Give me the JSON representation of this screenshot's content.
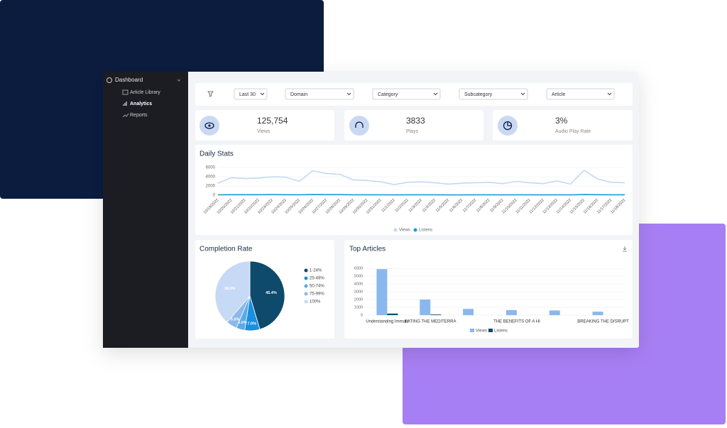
{
  "sidebar": {
    "title": "Dashboard",
    "items": [
      "Article Library",
      "Analytics",
      "Reports"
    ]
  },
  "filters": [
    "Last 30",
    "Domain",
    "Category",
    "Subcategory",
    "Article"
  ],
  "stats": [
    {
      "value": "125,754",
      "label": "Views"
    },
    {
      "value": "3833",
      "label": "Plays"
    },
    {
      "value": "3%",
      "label": "Audio Play Rate"
    }
  ],
  "chart_data": [
    {
      "type": "line",
      "title": "Daily Stats",
      "x": [
        "10/19/2022",
        "10/20/2022",
        "10/21/2022",
        "10/22/2022",
        "10/23/2022",
        "10/24/2022",
        "10/25/2022",
        "10/26/2022",
        "10/27/2022",
        "10/28/2022",
        "10/29/2022",
        "10/30/2022",
        "10/31/2022",
        "11/1/2022",
        "11/2/2022",
        "11/3/2022",
        "11/4/2022",
        "11/5/2022",
        "11/6/2022",
        "11/7/2022",
        "11/8/2022",
        "11/9/2022",
        "11/10/2022",
        "11/11/2022",
        "11/12/2022",
        "11/13/2022",
        "11/14/2022",
        "11/15/2022",
        "11/16/2022",
        "11/17/2022",
        "11/18/2022"
      ],
      "series": [
        {
          "name": "Views",
          "color": "#c3d9f2",
          "values": [
            2600,
            3800,
            3600,
            3700,
            4000,
            3900,
            3000,
            5300,
            4700,
            4500,
            3300,
            3200,
            2900,
            2300,
            2800,
            2900,
            2700,
            2400,
            2600,
            2700,
            2800,
            2500,
            3000,
            2700,
            2500,
            3100,
            2400,
            5400,
            3500,
            2800,
            2700
          ]
        },
        {
          "name": "Listens",
          "color": "#1a9be0",
          "values": [
            90,
            110,
            100,
            100,
            120,
            110,
            90,
            140,
            120,
            120,
            90,
            90,
            80,
            70,
            80,
            80,
            80,
            70,
            70,
            80,
            80,
            70,
            90,
            80,
            70,
            90,
            70,
            150,
            100,
            80,
            80
          ]
        }
      ],
      "ylim": [
        0,
        6000
      ],
      "yticks": [
        0,
        2000,
        4000,
        6000
      ],
      "grid": true
    },
    {
      "type": "pie",
      "title": "Completion Rate",
      "categories": [
        "1-24%",
        "25-49%",
        "50-74%",
        "75-99%",
        "100%"
      ],
      "values": [
        45.4,
        7.0,
        4.0,
        5.0,
        38.6
      ],
      "value_labels": [
        "45.4%",
        "7.0%",
        "4.0%",
        "5.0%",
        "38.6%"
      ],
      "colors": [
        "#0e4a6b",
        "#1a8fe0",
        "#5aaae8",
        "#8cb9ea",
        "#c6d9f5"
      ]
    },
    {
      "type": "bar",
      "title": "Top Articles",
      "categories": [
        "Understanding Immuni",
        "EATING THE MEDITERRA",
        null,
        "THE BENEFITS OF A HI",
        null,
        "BREAKING THE DISRUPT"
      ],
      "series": [
        {
          "name": "Views",
          "color": "#8ab8ee",
          "values": [
            5900,
            2000,
            800,
            650,
            600,
            450
          ]
        },
        {
          "name": "Listens",
          "color": "#0e4a6b",
          "values": [
            200,
            80,
            0,
            0,
            0,
            0
          ]
        }
      ],
      "ylim": [
        0,
        6000
      ],
      "yticks": [
        0,
        1000,
        2000,
        3000,
        4000,
        5000,
        6000
      ],
      "grid": true
    }
  ]
}
